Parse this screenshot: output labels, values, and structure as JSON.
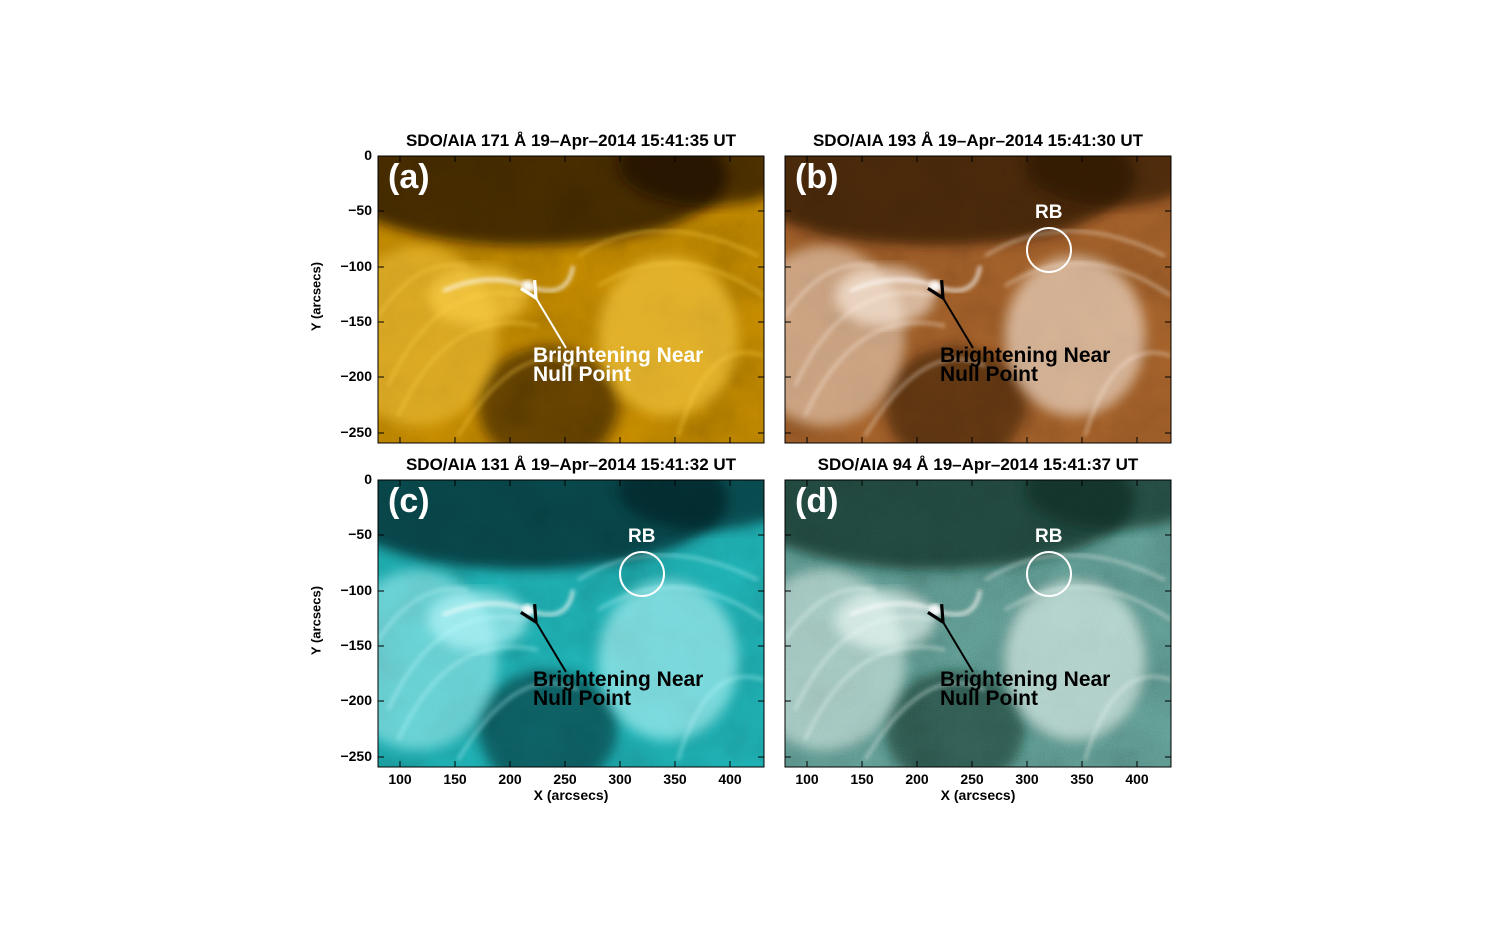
{
  "panels": [
    {
      "id": "a",
      "title": "SDO/AIA 171 Å 19–Apr–2014 15:41:35 UT",
      "letter": "(a)",
      "annotation_line1": "Brightening Near",
      "annotation_line2": "Null Point",
      "annotation_color": "#ffffff",
      "rb_label": "",
      "palette": {
        "dark": "#1a1000",
        "mid": "#c78a00",
        "bright": "#ffd24a"
      }
    },
    {
      "id": "b",
      "title": "SDO/AIA 193 Å 19–Apr–2014 15:41:30 UT",
      "letter": "(b)",
      "annotation_line1": "Brightening Near",
      "annotation_line2": "Null Point",
      "annotation_color": "#000000",
      "rb_label": "RB",
      "palette": {
        "dark": "#2a1200",
        "mid": "#a8622a",
        "bright": "#fff3e6"
      }
    },
    {
      "id": "c",
      "title": "SDO/AIA 131 Å 19–Apr–2014 15:41:32 UT",
      "letter": "(c)",
      "annotation_line1": "Brightening Near",
      "annotation_line2": "Null Point",
      "annotation_color": "#000000",
      "rb_label": "RB",
      "palette": {
        "dark": "#002426",
        "mid": "#1fb5b8",
        "bright": "#bffcff"
      }
    },
    {
      "id": "d",
      "title": "SDO/AIA 94 Å 19–Apr–2014 15:41:37 UT",
      "letter": "(d)",
      "annotation_line1": "Brightening Near",
      "annotation_line2": "Null Point",
      "annotation_color": "#000000",
      "rb_label": "RB",
      "palette": {
        "dark": "#0d2a24",
        "mid": "#5f9c92",
        "bright": "#f2fffb"
      }
    }
  ],
  "axes": {
    "y_ticks": [
      "0",
      "−50",
      "−100",
      "−150",
      "−200",
      "−250"
    ],
    "x_ticks": [
      "100",
      "150",
      "200",
      "250",
      "300",
      "350",
      "400"
    ],
    "y_label": "Y (arcsecs)",
    "x_label": "X (arcsecs)"
  }
}
